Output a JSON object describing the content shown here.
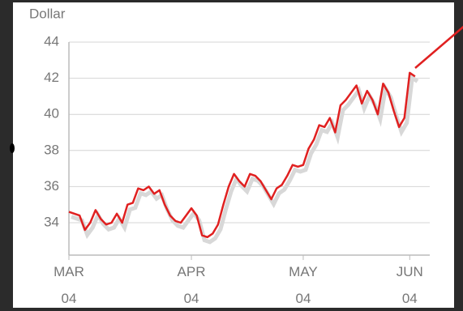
{
  "chart_data": {
    "type": "line",
    "ylabel": "Dollar",
    "series": [
      {
        "color": "#e02020",
        "values": [
          34.6,
          34.5,
          34.4,
          33.6,
          34.0,
          34.7,
          34.2,
          33.9,
          34.0,
          34.5,
          34.0,
          35.0,
          35.1,
          35.9,
          35.8,
          36.0,
          35.6,
          35.8,
          35.0,
          34.4,
          34.1,
          34.0,
          34.4,
          34.8,
          34.4,
          33.3,
          33.2,
          33.4,
          33.9,
          35.0,
          36.0,
          36.7,
          36.3,
          36.0,
          36.7,
          36.6,
          36.3,
          35.8,
          35.3,
          35.9,
          36.1,
          36.6,
          37.2,
          37.1,
          37.2,
          38.1,
          38.6,
          39.4,
          39.3,
          39.8,
          39.0,
          40.5,
          40.8,
          41.2,
          41.6,
          40.6,
          41.3,
          40.8,
          40.0,
          41.7,
          41.2,
          40.2,
          39.3,
          39.8,
          42.3,
          42.1
        ]
      }
    ],
    "xlim": [
      0,
      67
    ],
    "xticks": [
      {
        "value": 0,
        "label": "MAR 04"
      },
      {
        "value": 23,
        "label": "APR 04"
      },
      {
        "value": 44,
        "label": "MAY 04"
      },
      {
        "value": 64,
        "label": "JUN 04"
      }
    ],
    "ylim": [
      33,
      44
    ],
    "yticks": [
      34,
      36,
      38,
      40,
      42,
      44
    ],
    "grid": true
  }
}
